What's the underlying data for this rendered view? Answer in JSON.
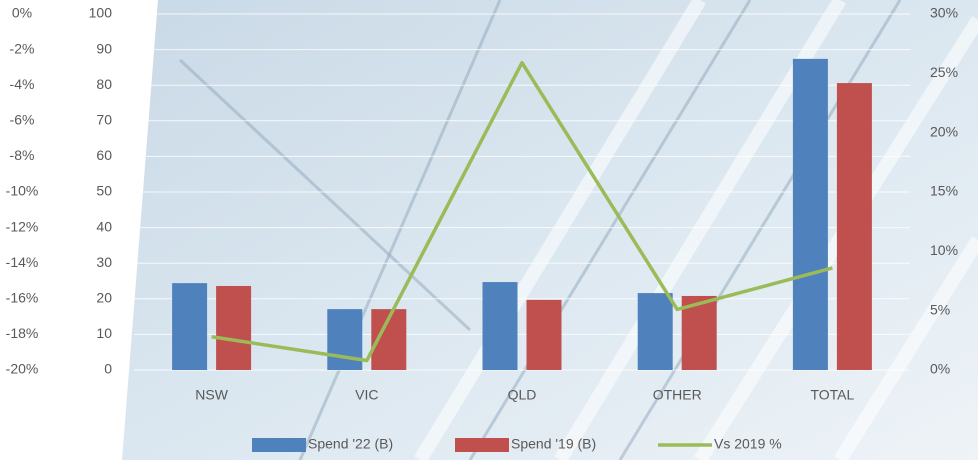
{
  "chart_data": {
    "type": "bar-line",
    "categories": [
      "NSW",
      "VIC",
      "QLD",
      "OTHER",
      "TOTAL"
    ],
    "series": [
      {
        "name": "Spend '22 (B)",
        "type": "bar",
        "color": "#4f81bd",
        "values": [
          24.4,
          17.1,
          24.7,
          21.6,
          87.4
        ]
      },
      {
        "name": "Spend '19 (B)",
        "type": "bar",
        "color": "#c0504d",
        "values": [
          23.6,
          17.1,
          19.7,
          20.8,
          80.6
        ]
      },
      {
        "name": "Vs 2019 %",
        "type": "line",
        "color": "#9bbb59",
        "axis": "y2",
        "values": [
          2.8,
          0.8,
          25.9,
          5.1,
          8.6
        ]
      }
    ],
    "ylim": [
      0,
      100
    ],
    "yticks": [
      0,
      10,
      20,
      30,
      40,
      50,
      60,
      70,
      80,
      90,
      100
    ],
    "y2lim": [
      0,
      30
    ],
    "y2ticks": [
      {
        "value": 0,
        "label": "0%"
      },
      {
        "value": 5,
        "label": "5%"
      },
      {
        "value": 10,
        "label": "10%"
      },
      {
        "value": 15,
        "label": "15%"
      },
      {
        "value": 20,
        "label": "20%"
      },
      {
        "value": 25,
        "label": "25%"
      },
      {
        "value": 30,
        "label": "30%"
      }
    ],
    "y3lim": [
      -20,
      0
    ],
    "y3ticks": [
      {
        "value": 0,
        "label": "0%"
      },
      {
        "value": -2,
        "label": "-2%"
      },
      {
        "value": -4,
        "label": "-4%"
      },
      {
        "value": -6,
        "label": "-6%"
      },
      {
        "value": -8,
        "label": "-8%"
      },
      {
        "value": -10,
        "label": "-10%"
      },
      {
        "value": -12,
        "label": "-12%"
      },
      {
        "value": -14,
        "label": "-14%"
      },
      {
        "value": -16,
        "label": "-16%"
      },
      {
        "value": -18,
        "label": "-18%"
      },
      {
        "value": -20,
        "label": "-20%"
      }
    ],
    "grid": true
  }
}
